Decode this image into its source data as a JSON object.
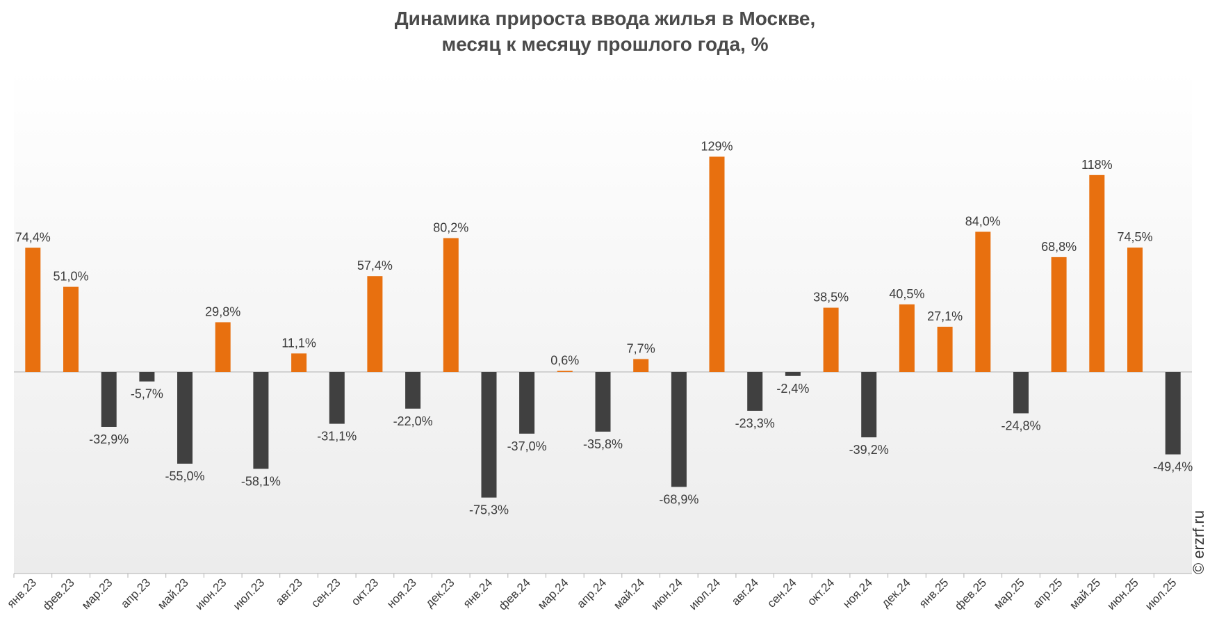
{
  "chart_data": {
    "type": "bar",
    "title_lines": [
      "Динамика прироста ввода жилья в Москве,",
      "месяц к месяцу прошлого года, %"
    ],
    "xlabel": "",
    "ylabel": "",
    "grid": false,
    "legend": "none",
    "colors": {
      "positive": "#e8700f",
      "negative": "#404040",
      "text": "#3a3a3a",
      "axis": "#b0b0b0"
    },
    "categories": [
      "янв.23",
      "фев.23",
      "мар.23",
      "апр.23",
      "май.23",
      "июн.23",
      "июл.23",
      "авг.23",
      "сен.23",
      "окт.23",
      "ноя.23",
      "дек.23",
      "янв.24",
      "фев.24",
      "мар.24",
      "апр.24",
      "май.24",
      "июн.24",
      "июл.24",
      "авг.24",
      "сен.24",
      "окт.24",
      "ноя.24",
      "дек.24",
      "янв.25",
      "фев.25",
      "мар.25",
      "апр.25",
      "май.25",
      "июн.25",
      "июл.25"
    ],
    "values": [
      74.4,
      51.0,
      -32.9,
      -5.7,
      -55.0,
      29.8,
      -58.1,
      11.1,
      -31.1,
      57.4,
      -22.0,
      80.2,
      -75.3,
      -37.0,
      0.6,
      -35.8,
      7.7,
      -68.9,
      129,
      -23.3,
      -2.4,
      38.5,
      -39.2,
      40.5,
      27.1,
      84.0,
      -24.8,
      68.8,
      118,
      74.5,
      -49.4
    ],
    "data_labels": [
      "74,4%",
      "51,0%",
      "-32,9%",
      "-5,7%",
      "-55,0%",
      "29,8%",
      "-58,1%",
      "11,1%",
      "-31,1%",
      "57,4%",
      "-22,0%",
      "80,2%",
      "-75,3%",
      "-37,0%",
      "0,6%",
      "-35,8%",
      "7,7%",
      "-68,9%",
      "129%",
      "-23,3%",
      "-2,4%",
      "38,5%",
      "-39,2%",
      "40,5%",
      "27,1%",
      "84,0%",
      "-24,8%",
      "68,8%",
      "118%",
      "74,5%",
      "-49,4%"
    ],
    "ylim": [
      -100,
      150
    ]
  },
  "watermark": "© erzrf.ru"
}
